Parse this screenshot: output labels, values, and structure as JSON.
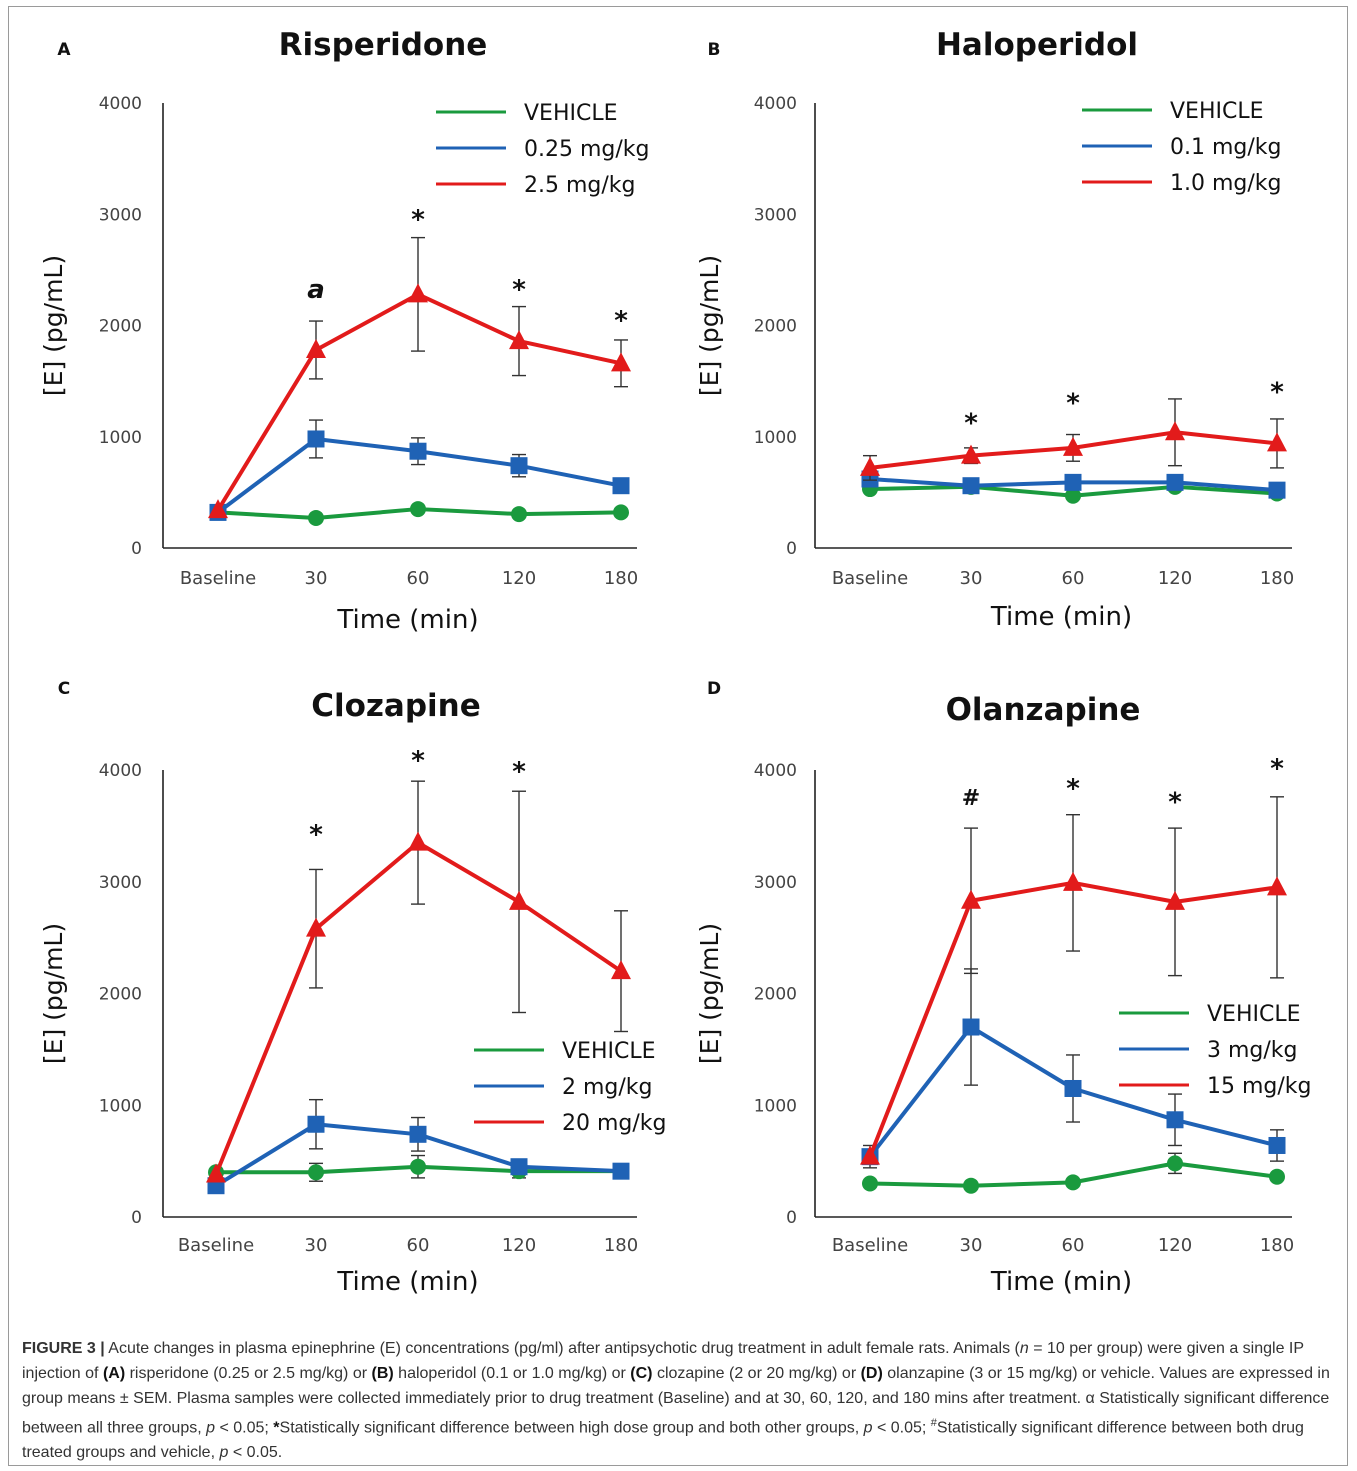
{
  "chart_data": [
    {
      "panel": "A",
      "type": "line",
      "title": "Risperidone",
      "xlabel": "Time (min)",
      "ylabel": "[E] (pg/mL)",
      "categories": [
        "Baseline",
        "30",
        "60",
        "120",
        "180"
      ],
      "ylim": [
        0,
        4000
      ],
      "yticks": [
        "0",
        "1000",
        "2000",
        "3000",
        "4000"
      ],
      "legend_position": "top-right",
      "series": [
        {
          "name": "VEHICLE",
          "color": "#1a9a3e",
          "marker": "circle",
          "values": [
            320,
            270,
            350,
            305,
            320
          ],
          "errors": [
            0,
            0,
            0,
            0,
            0
          ]
        },
        {
          "name": "0.25 mg/kg",
          "color": "#1f62b5",
          "marker": "square",
          "values": [
            320,
            980,
            870,
            740,
            560
          ],
          "errors": [
            0,
            170,
            120,
            100,
            60
          ]
        },
        {
          "name": "2.5 mg/kg",
          "color": "#e21b1b",
          "marker": "triangle",
          "values": [
            340,
            1780,
            2280,
            1860,
            1660
          ],
          "errors": [
            0,
            260,
            510,
            310,
            210
          ]
        }
      ],
      "annotations": [
        {
          "text": "a",
          "x": "30",
          "y": 2320
        },
        {
          "text": "*",
          "x": "60",
          "y": 2950
        },
        {
          "text": "*",
          "x": "120",
          "y": 2320
        },
        {
          "text": "*",
          "x": "180",
          "y": 2040
        }
      ]
    },
    {
      "panel": "B",
      "type": "line",
      "title": "Haloperidol",
      "xlabel": "Time (min)",
      "ylabel": "[E] (pg/mL)",
      "categories": [
        "Baseline",
        "30",
        "60",
        "120",
        "180"
      ],
      "ylim": [
        0,
        4000
      ],
      "yticks": [
        "0",
        "1000",
        "2000",
        "3000",
        "4000"
      ],
      "legend_position": "top-right",
      "series": [
        {
          "name": "VEHICLE",
          "color": "#1a9a3e",
          "marker": "circle",
          "values": [
            530,
            550,
            470,
            550,
            490
          ],
          "errors": [
            0,
            0,
            0,
            0,
            0
          ]
        },
        {
          "name": "0.1 mg/kg",
          "color": "#1f62b5",
          "marker": "square",
          "values": [
            620,
            560,
            590,
            590,
            520
          ],
          "errors": [
            0,
            0,
            0,
            0,
            0
          ]
        },
        {
          "name": "1.0 mg/kg",
          "color": "#e21b1b",
          "marker": "triangle",
          "values": [
            720,
            830,
            900,
            1040,
            940
          ],
          "errors": [
            110,
            70,
            120,
            300,
            220
          ]
        }
      ],
      "annotations": [
        {
          "text": "*",
          "x": "30",
          "y": 1120
        },
        {
          "text": "*",
          "x": "60",
          "y": 1300
        },
        {
          "text": "*",
          "x": "180",
          "y": 1400
        }
      ]
    },
    {
      "panel": "C",
      "type": "line",
      "title": "Clozapine",
      "xlabel": "Time (min)",
      "ylabel": "[E] (pg/mL)",
      "categories": [
        "Baseline",
        "30",
        "60",
        "120",
        "180"
      ],
      "ylim": [
        0,
        4000
      ],
      "yticks": [
        "0",
        "1000",
        "2000",
        "3000",
        "4000"
      ],
      "legend_position": "bottom-right",
      "series": [
        {
          "name": "VEHICLE",
          "color": "#1a9a3e",
          "marker": "circle",
          "values": [
            400,
            400,
            450,
            410,
            410
          ],
          "errors": [
            0,
            80,
            100,
            60,
            0
          ]
        },
        {
          "name": "2 mg/kg",
          "color": "#1f62b5",
          "marker": "square",
          "values": [
            280,
            830,
            740,
            450,
            410
          ],
          "errors": [
            0,
            220,
            150,
            0,
            0
          ]
        },
        {
          "name": "20 mg/kg",
          "color": "#e21b1b",
          "marker": "triangle",
          "values": [
            380,
            2580,
            3350,
            2820,
            2200
          ],
          "errors": [
            0,
            530,
            550,
            990,
            540
          ]
        }
      ],
      "annotations": [
        {
          "text": "*",
          "x": "30",
          "y": 3420
        },
        {
          "text": "*",
          "x": "60",
          "y": 4080
        },
        {
          "text": "*",
          "x": "120",
          "y": 3980
        }
      ]
    },
    {
      "panel": "D",
      "type": "line",
      "title": "Olanzapine",
      "xlabel": "Time (min)",
      "ylabel": "[E] (pg/mL)",
      "categories": [
        "Baseline",
        "30",
        "60",
        "120",
        "180"
      ],
      "ylim": [
        0,
        4000
      ],
      "yticks": [
        "0",
        "1000",
        "2000",
        "3000",
        "4000"
      ],
      "legend_position": "center-right",
      "series": [
        {
          "name": "VEHICLE",
          "color": "#1a9a3e",
          "marker": "circle",
          "values": [
            300,
            280,
            310,
            480,
            360
          ],
          "errors": [
            0,
            0,
            0,
            90,
            0
          ]
        },
        {
          "name": "3 mg/kg",
          "color": "#1f62b5",
          "marker": "square",
          "values": [
            540,
            1700,
            1150,
            870,
            640
          ],
          "errors": [
            100,
            520,
            300,
            230,
            140
          ]
        },
        {
          "name": "15 mg/kg",
          "color": "#e21b1b",
          "marker": "triangle",
          "values": [
            540,
            2830,
            2990,
            2820,
            2950
          ],
          "errors": [
            0,
            650,
            610,
            660,
            810
          ]
        }
      ],
      "annotations": [
        {
          "text": "#",
          "x": "30",
          "y": 3760
        },
        {
          "text": "*",
          "x": "60",
          "y": 3830
        },
        {
          "text": "*",
          "x": "120",
          "y": 3710
        },
        {
          "text": "*",
          "x": "180",
          "y": 4010
        }
      ]
    }
  ],
  "caption": {
    "figure_label": "FIGURE 3 |",
    "segments": [
      {
        "t": " Acute changes in plasma epinephrine (E) concentrations (pg/ml) after antipsychotic drug treatment in adult female rats. Animals (",
        "b": false
      },
      {
        "t": "n",
        "b": false,
        "i": true
      },
      {
        "t": " = 10 per group) were given a single IP injection of ",
        "b": false
      },
      {
        "t": "(A)",
        "b": true
      },
      {
        "t": " risperidone (0.25 or 2.5 mg/kg) or ",
        "b": false
      },
      {
        "t": "(B)",
        "b": true
      },
      {
        "t": " haloperidol (0.1 or 1.0 mg/kg) or ",
        "b": false
      },
      {
        "t": "(C)",
        "b": true
      },
      {
        "t": " clozapine (2 or 20 mg/kg) or ",
        "b": false
      },
      {
        "t": "(D)",
        "b": true
      },
      {
        "t": " olanzapine (3 or 15 mg/kg) or vehicle. Values are expressed in group means ± SEM. Plasma samples were collected immediately prior to drug treatment (Baseline) and at 30, 60, 120, and 180 mins after treatment. α Statistically significant difference between all three groups, ",
        "b": false
      },
      {
        "t": "p",
        "b": false,
        "i": true
      },
      {
        "t": " < 0.05; ",
        "b": false
      },
      {
        "t": "*",
        "b": true
      },
      {
        "t": "Statistically significant difference between high dose group and both other groups, ",
        "b": false
      },
      {
        "t": "p",
        "b": false,
        "i": true
      },
      {
        "t": " < 0.05; ",
        "b": false
      },
      {
        "t": "#",
        "b": false,
        "sup": true
      },
      {
        "t": "Statistically significant difference between both drug treated groups and vehicle, ",
        "b": false
      },
      {
        "t": "p",
        "b": false,
        "i": true
      },
      {
        "t": " < 0.05.",
        "b": false
      }
    ]
  }
}
